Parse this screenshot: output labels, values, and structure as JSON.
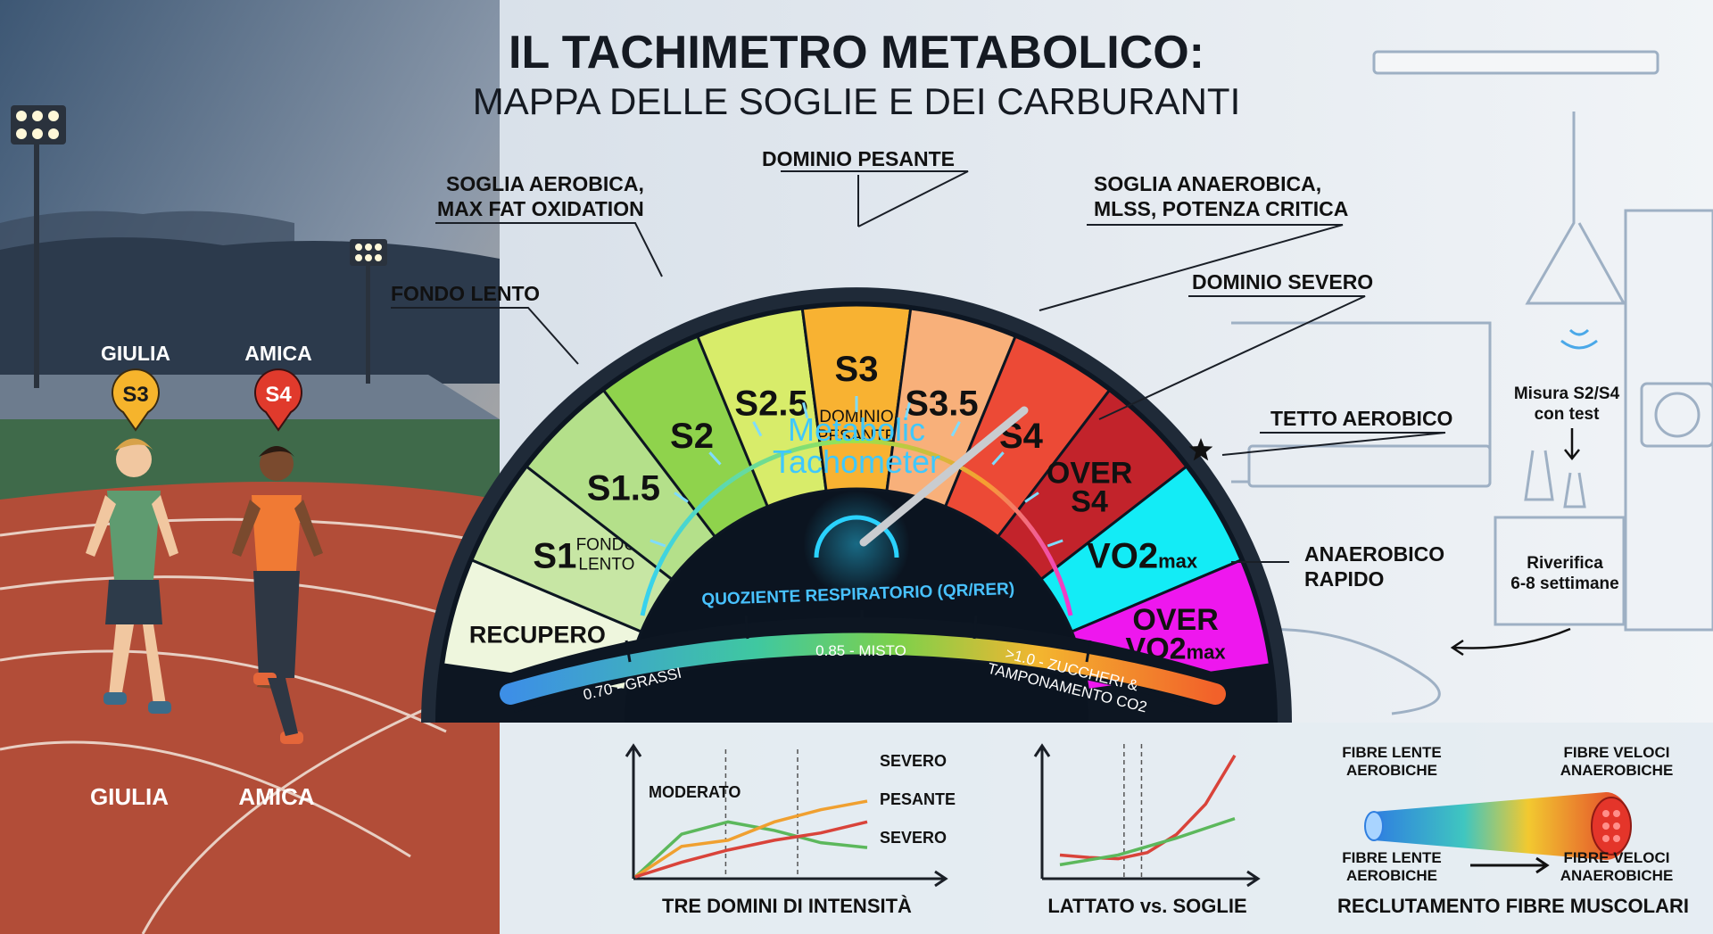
{
  "header": {
    "title": "IL TACHIMETRO METABOLICO:",
    "subtitle": "MAPPA DELLE SOGLIE E DEI CARBURANTI"
  },
  "runners": {
    "left_tag_name": "GIULIA",
    "left_tag_badge": "S3",
    "right_tag_name": "AMICA",
    "right_tag_badge": "S4",
    "left_ground_name": "GIULIA",
    "right_ground_name": "AMICA"
  },
  "gauge": {
    "center_line1": "Metabolic",
    "center_line2": "Tachometer",
    "needle_value": "S4",
    "zones": [
      {
        "id": "recupero",
        "main": "RECUPERO",
        "sub": "",
        "color": "#eef6dd"
      },
      {
        "id": "s1",
        "main": "S1",
        "sub": "FONDO\nLENTO",
        "color": "#c7e6a4"
      },
      {
        "id": "s15",
        "main": "S1.5",
        "sub": "",
        "color": "#b4e08a"
      },
      {
        "id": "s2",
        "main": "S2",
        "sub": "",
        "color": "#8fd34c"
      },
      {
        "id": "s25",
        "main": "S2.5",
        "sub": "",
        "color": "#d8ec6a"
      },
      {
        "id": "s3",
        "main": "S3",
        "sub": "DOMINIO\nPESANTE",
        "color": "#f8b232"
      },
      {
        "id": "s35",
        "main": "S3.5",
        "sub": "",
        "color": "#f8b07a"
      },
      {
        "id": "s4",
        "main": "S4",
        "sub": "",
        "color": "#ec4a36"
      },
      {
        "id": "over_s4",
        "main": "OVER\nS4",
        "sub": "",
        "color": "#c2232b"
      },
      {
        "id": "vo2max",
        "main": "VO2",
        "sub": "max",
        "color": "#13ecf6"
      },
      {
        "id": "over_vo2max",
        "main": "OVER\nVO2",
        "sub": "max",
        "color": "#ee17ee"
      }
    ],
    "callouts": {
      "fondo_lento": "FONDO LENTO",
      "soglia_aerobica": "SOGLIA AEROBICA,\nMAX FAT OXIDATION",
      "dominio_pesante": "DOMINIO PESANTE",
      "soglia_anaerobica": "SOGLIA ANAEROBICA,\nMLSS, POTENZA CRITICA",
      "dominio_severo": "DOMINIO SEVERO",
      "tetto_aerobico": "TETTO AEROBICO",
      "anaerobico_rapido": "ANAEROBICO\nRAPIDO"
    },
    "rer": {
      "title": "QUOZIENTE RESPIRATORIO (QR/RER)",
      "grassi": "0.70 - GRASSI",
      "misto": "0.85 - MISTO",
      "zuccheri": ">1.0 - ZUCCHERI &\nTAMPONAMENTO CO2"
    }
  },
  "lab": {
    "measure": "Misura S2/S4\ncon test",
    "recheck": "Riverifica\n6-8 settimane"
  },
  "charts": [
    {
      "type": "line",
      "title": "TRE DOMINI DI INTENSITÀ",
      "labels": {
        "moderato": "MODERATO",
        "severo_top": "SEVERO",
        "pesante": "PESANTE",
        "severo_bottom": "SEVERO"
      },
      "x": [
        0,
        1,
        2,
        3,
        4,
        5
      ],
      "series": [
        {
          "values": [
            0.0,
            0.35,
            0.45,
            0.38,
            0.28,
            0.24
          ],
          "color": "#5cb85c"
        },
        {
          "values": [
            0.0,
            0.25,
            0.3,
            0.45,
            0.55,
            0.62
          ],
          "color": "#f0a030"
        },
        {
          "values": [
            0.0,
            0.12,
            0.22,
            0.3,
            0.36,
            0.45
          ],
          "color": "#d9433a"
        }
      ],
      "thresholds_x": [
        1.95,
        3.5
      ],
      "ylim": [
        0,
        1
      ],
      "xlabel": "",
      "ylabel": ""
    },
    {
      "type": "line",
      "title": "LATTATO vs. SOGLIE",
      "x": [
        0,
        1,
        2,
        3,
        4,
        5,
        6
      ],
      "series": [
        {
          "values": [
            0.18,
            0.16,
            0.15,
            0.2,
            0.35,
            0.6,
            1.0
          ],
          "color": "#d9433a"
        },
        {
          "values": [
            0.1,
            0.14,
            0.18,
            0.25,
            0.32,
            0.4,
            0.48
          ],
          "color": "#5cb85c"
        }
      ],
      "thresholds_x": [
        2.2,
        2.8
      ],
      "ylim": [
        0,
        1.05
      ],
      "xlabel": "",
      "ylabel": ""
    }
  ],
  "fibers": {
    "title": "RECLUTAMENTO FIBRE MUSCOLARI",
    "slow_top": "FIBRE LENTE\nAEROBICHE",
    "fast_top": "FIBRE VELOCI\nANAEROBICHE",
    "slow_bottom": "FIBRE LENTE\nAEROBICHE",
    "fast_bottom": "FIBRE VELOCI\nANAEROBICHE"
  }
}
